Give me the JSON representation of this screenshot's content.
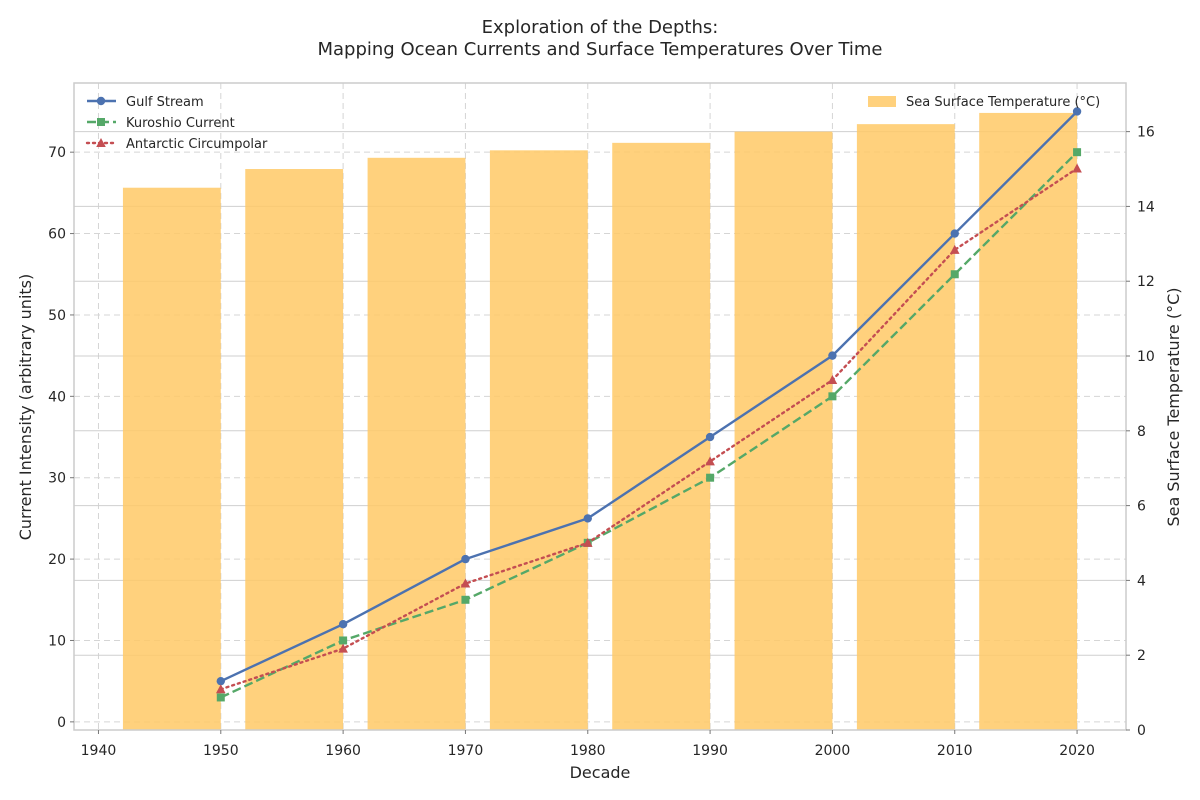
{
  "chart_data": {
    "type": "bar+line",
    "title_line1": "Exploration of the Depths:",
    "title_line2": "Mapping Ocean Currents and Surface Temperatures Over Time",
    "xlabel": "Decade",
    "ylabel_left": "Current Intensity (arbitrary units)",
    "ylabel_right": "Sea Surface Temperature (°C)",
    "x": [
      1950,
      1960,
      1970,
      1980,
      1990,
      2000,
      2010,
      2020
    ],
    "xlim": [
      1938,
      2024
    ],
    "xticks": [
      1940,
      1950,
      1960,
      1970,
      1980,
      1990,
      2000,
      2010,
      2020
    ],
    "ylim_left": [
      -1,
      78.5
    ],
    "yticks_left": [
      0,
      10,
      20,
      30,
      40,
      50,
      60,
      70
    ],
    "ylim_right": [
      0,
      17.3
    ],
    "yticks_right": [
      0,
      2,
      4,
      6,
      8,
      10,
      12,
      14,
      16
    ],
    "grid": true,
    "bars": {
      "name": "Sea Surface Temperature (°C)",
      "color": "#ffc966",
      "bar_width_years": 8,
      "values": [
        14.5,
        15.0,
        15.3,
        15.5,
        15.7,
        16.0,
        16.2,
        16.5
      ]
    },
    "series": [
      {
        "name": "Gulf Stream",
        "color": "#4c72b0",
        "marker": "circle",
        "dash": "solid",
        "values": [
          5,
          12,
          20,
          25,
          35,
          45,
          60,
          75
        ]
      },
      {
        "name": "Kuroshio Current",
        "color": "#55a868",
        "marker": "square",
        "dash": "dashed",
        "values": [
          3,
          10,
          15,
          22,
          30,
          40,
          55,
          70
        ]
      },
      {
        "name": "Antarctic Circumpolar",
        "color": "#c44e52",
        "marker": "triangle",
        "dash": "dotted",
        "values": [
          4,
          9,
          17,
          22,
          32,
          42,
          58,
          68
        ]
      }
    ],
    "legend_left_placement": "top-left",
    "legend_right_placement": "top-right"
  }
}
